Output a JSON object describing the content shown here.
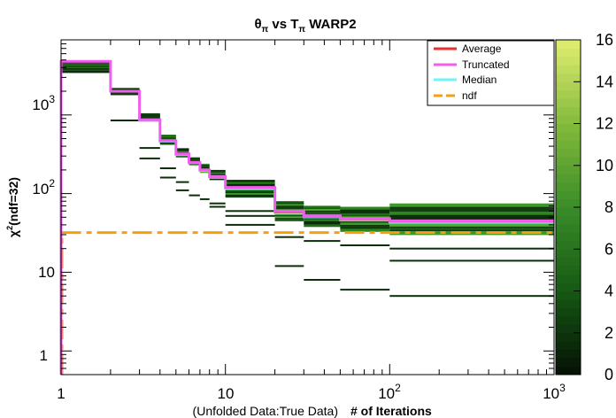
{
  "chart_data": {
    "type": "heatmap",
    "title": "θπ vs Tπ WARP2",
    "title_parts": {
      "theta": "θ",
      "pi_sub1": "π",
      "vs": " vs T",
      "pi_sub2": "π",
      "rest": " WARP2"
    },
    "xlabel_prefix": "(Unfolded Data:True Data)",
    "xlabel": "# of Iterations",
    "ylabel": "χ²(ndf=32)",
    "ylabel_parts": {
      "chi": "χ",
      "sup": "2",
      "rest": "(ndf=32)"
    },
    "x_scale": "log",
    "y_scale": "log",
    "xlim": [
      1,
      1000
    ],
    "ylim": [
      0.5,
      9000
    ],
    "x_ticks": [
      {
        "value": 1,
        "label": "1"
      },
      {
        "value": 10,
        "label": "10"
      },
      {
        "value": 100,
        "label": "10",
        "sup": "2"
      },
      {
        "value": 1000,
        "label": "10",
        "sup": "3"
      }
    ],
    "y_ticks": [
      {
        "value": 1,
        "label": "1"
      },
      {
        "value": 10,
        "label": "10"
      },
      {
        "value": 100,
        "label": "10",
        "sup": "2"
      },
      {
        "value": 1000,
        "label": "10",
        "sup": "3"
      }
    ],
    "colorbar": {
      "min": 0,
      "max": 16,
      "ticks": [
        "0",
        "2",
        "4",
        "6",
        "8",
        "10",
        "12",
        "14",
        "16"
      ]
    },
    "iteration_bins": [
      1,
      2,
      3,
      4,
      5,
      6,
      7,
      8,
      10,
      20,
      30,
      50,
      100,
      1000
    ],
    "truncated_chi2": [
      4800,
      2000,
      870,
      470,
      320,
      250,
      200,
      165,
      120,
      60,
      52,
      48,
      45
    ],
    "median_chi2": [
      4800,
      2000,
      840,
      460,
      310,
      245,
      195,
      160,
      115,
      56,
      50,
      46,
      43
    ],
    "average_chi2": [
      4800,
      2000,
      860,
      465,
      315,
      248,
      198,
      163,
      118,
      58,
      51,
      47,
      44
    ],
    "band_ranges": [
      [
        3500,
        4800
      ],
      [
        1800,
        2200
      ],
      [
        870,
        1050
      ],
      [
        420,
        560
      ],
      [
        290,
        380
      ],
      [
        230,
        290
      ],
      [
        185,
        240
      ],
      [
        150,
        200
      ],
      [
        90,
        150
      ],
      [
        45,
        80
      ],
      [
        38,
        70
      ],
      [
        33,
        68
      ],
      [
        30,
        75
      ]
    ],
    "outliers": [
      [
        3500
      ],
      [
        850
      ],
      [
        380,
        280
      ],
      [
        210,
        160
      ],
      [
        140,
        110
      ],
      [
        95
      ],
      [
        85
      ],
      [
        75,
        68
      ],
      [
        60,
        52,
        40
      ],
      [
        28,
        12
      ],
      [
        25,
        8
      ],
      [
        22,
        6
      ],
      [
        20,
        14,
        5
      ]
    ],
    "ndf_line": 32,
    "legend": [
      {
        "name": "Average",
        "color": "#e8302e"
      },
      {
        "name": "Truncated",
        "color": "#f25cf0"
      },
      {
        "name": "Median",
        "color": "#6ff5f5"
      },
      {
        "name": "ndf",
        "color": "#f5a00f"
      }
    ],
    "legend_position": "top-right",
    "grid": false
  }
}
